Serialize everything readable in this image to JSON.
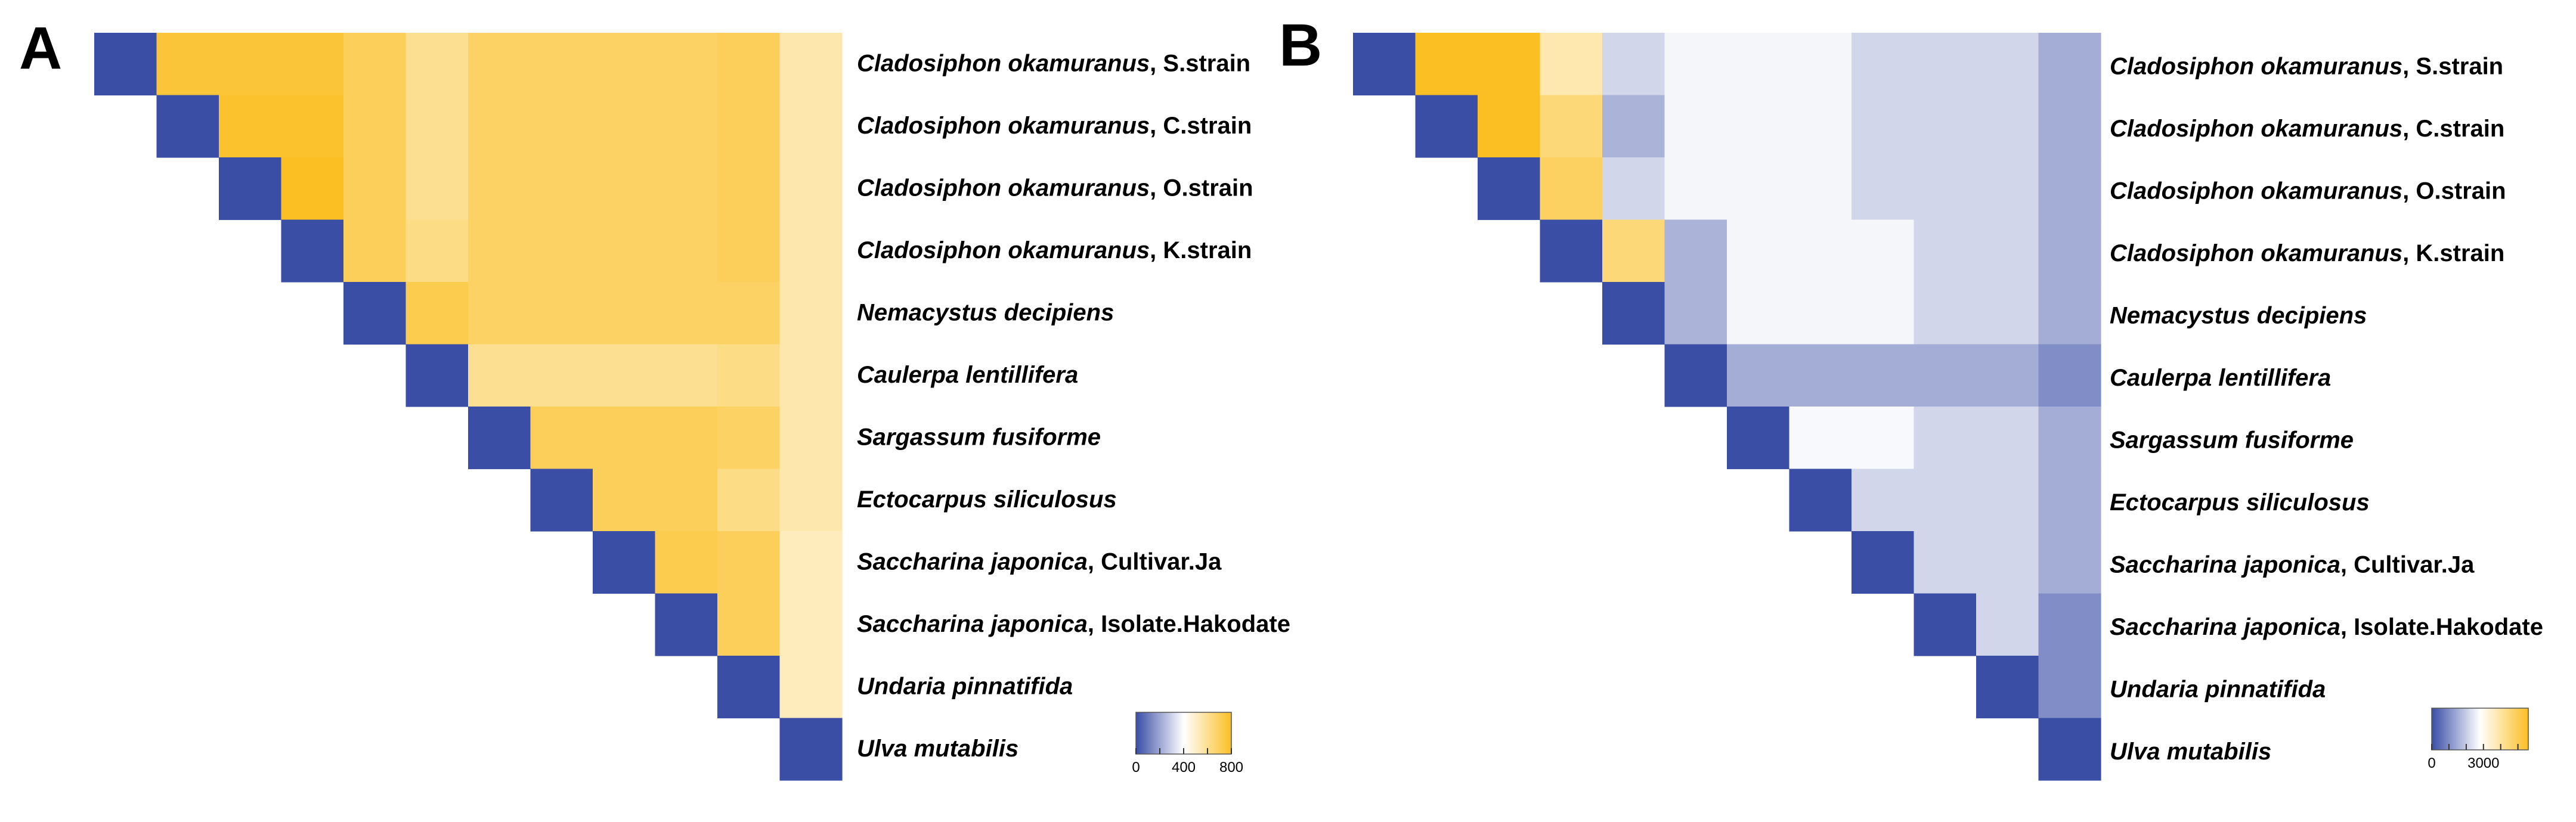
{
  "panels": [
    {
      "letter": "A"
    },
    {
      "letter": "B"
    }
  ],
  "colors": {
    "low": "#3a4ea6",
    "mid": "#ffffff",
    "high": "#fbbf23"
  },
  "chart_data": [
    {
      "type": "heatmap",
      "panel": "A",
      "shape": "upper-triangle",
      "rows": [
        {
          "species": "Cladosiphon okamuranus",
          "suffix": ", S.strain"
        },
        {
          "species": "Cladosiphon okamuranus",
          "suffix": ", C.strain"
        },
        {
          "species": "Cladosiphon okamuranus",
          "suffix": ", O.strain"
        },
        {
          "species": "Cladosiphon okamuranus",
          "suffix": ", K.strain"
        },
        {
          "species": "Nemacystus decipiens",
          "suffix": ""
        },
        {
          "species": "Caulerpa lentillifera",
          "suffix": ""
        },
        {
          "species": "Sargassum fusiforme",
          "suffix": ""
        },
        {
          "species": "Ectocarpus siliculosus",
          "suffix": ""
        },
        {
          "species": "Saccharina japonica",
          "suffix": ", Cultivar.Ja"
        },
        {
          "species": "Saccharina japonica",
          "suffix": ", Isolate.Hakodate"
        },
        {
          "species": "Undaria pinnatifida",
          "suffix": ""
        },
        {
          "species": "Ulva mutabilis",
          "suffix": ""
        }
      ],
      "values": [
        [
          0,
          760,
          760,
          760,
          700,
          600,
          680,
          680,
          680,
          680,
          700,
          550
        ],
        [
          null,
          0,
          780,
          780,
          700,
          600,
          680,
          680,
          680,
          680,
          700,
          550
        ],
        [
          null,
          null,
          0,
          800,
          700,
          600,
          680,
          680,
          680,
          680,
          700,
          550
        ],
        [
          null,
          null,
          null,
          0,
          700,
          620,
          680,
          680,
          680,
          680,
          700,
          550
        ],
        [
          null,
          null,
          null,
          null,
          0,
          720,
          680,
          680,
          680,
          680,
          680,
          550
        ],
        [
          null,
          null,
          null,
          null,
          null,
          0,
          600,
          600,
          600,
          600,
          620,
          550
        ],
        [
          null,
          null,
          null,
          null,
          null,
          null,
          0,
          700,
          700,
          700,
          680,
          550
        ],
        [
          null,
          null,
          null,
          null,
          null,
          null,
          null,
          0,
          700,
          700,
          620,
          550
        ],
        [
          null,
          null,
          null,
          null,
          null,
          null,
          null,
          null,
          0,
          720,
          700,
          520
        ],
        [
          null,
          null,
          null,
          null,
          null,
          null,
          null,
          null,
          null,
          0,
          700,
          520
        ],
        [
          null,
          null,
          null,
          null,
          null,
          null,
          null,
          null,
          null,
          null,
          0,
          520
        ],
        [
          null,
          null,
          null,
          null,
          null,
          null,
          null,
          null,
          null,
          null,
          null,
          0
        ]
      ],
      "colorbar": {
        "min": 0,
        "max": 800,
        "ticks": [
          0,
          400,
          800
        ],
        "minor_ticks": [
          0,
          200,
          400,
          600,
          800
        ]
      }
    },
    {
      "type": "heatmap",
      "panel": "B",
      "shape": "upper-triangle",
      "rows": [
        {
          "species": "Cladosiphon okamuranus",
          "suffix": ", S.strain"
        },
        {
          "species": "Cladosiphon okamuranus",
          "suffix": ", C.strain"
        },
        {
          "species": "Cladosiphon okamuranus",
          "suffix": ", O.strain"
        },
        {
          "species": "Cladosiphon okamuranus",
          "suffix": ", K.strain"
        },
        {
          "species": "Nemacystus decipiens",
          "suffix": ""
        },
        {
          "species": "Caulerpa lentillifera",
          "suffix": ""
        },
        {
          "species": "Sargassum fusiforme",
          "suffix": ""
        },
        {
          "species": "Ectocarpus siliculosus",
          "suffix": ""
        },
        {
          "species": "Saccharina japonica",
          "suffix": ", Cultivar.Ja"
        },
        {
          "species": "Saccharina japonica",
          "suffix": ", Isolate.Hakodate"
        },
        {
          "species": "Undaria pinnatifida",
          "suffix": ""
        },
        {
          "species": "Ulva mutabilis",
          "suffix": ""
        }
      ],
      "values": [
        [
          0,
          5600,
          5600,
          3800,
          2150,
          2650,
          2650,
          2650,
          2150,
          2150,
          2150,
          1500
        ],
        [
          null,
          0,
          5600,
          4500,
          1600,
          2650,
          2650,
          2650,
          2150,
          2150,
          2150,
          1500
        ],
        [
          null,
          null,
          0,
          4800,
          2150,
          2650,
          2650,
          2650,
          2150,
          2150,
          2150,
          1500
        ],
        [
          null,
          null,
          null,
          0,
          4500,
          1600,
          2650,
          2650,
          2650,
          2150,
          2150,
          1500
        ],
        [
          null,
          null,
          null,
          null,
          0,
          1600,
          2650,
          2650,
          2650,
          2150,
          2150,
          1500
        ],
        [
          null,
          null,
          null,
          null,
          null,
          0,
          1500,
          1500,
          1500,
          1500,
          1500,
          1000
        ],
        [
          null,
          null,
          null,
          null,
          null,
          null,
          0,
          2700,
          2700,
          2150,
          2150,
          1500
        ],
        [
          null,
          null,
          null,
          null,
          null,
          null,
          null,
          0,
          2150,
          2150,
          2150,
          1500
        ],
        [
          null,
          null,
          null,
          null,
          null,
          null,
          null,
          null,
          0,
          2150,
          2150,
          1500
        ],
        [
          null,
          null,
          null,
          null,
          null,
          null,
          null,
          null,
          null,
          0,
          2150,
          1000
        ],
        [
          null,
          null,
          null,
          null,
          null,
          null,
          null,
          null,
          null,
          null,
          0,
          1000
        ],
        [
          null,
          null,
          null,
          null,
          null,
          null,
          null,
          null,
          null,
          null,
          null,
          0
        ]
      ],
      "colorbar": {
        "min": 0,
        "max": 5600,
        "ticks": [
          0,
          3000
        ],
        "minor_ticks": [
          0,
          1000,
          2000,
          3000,
          4000,
          5000
        ]
      }
    }
  ]
}
